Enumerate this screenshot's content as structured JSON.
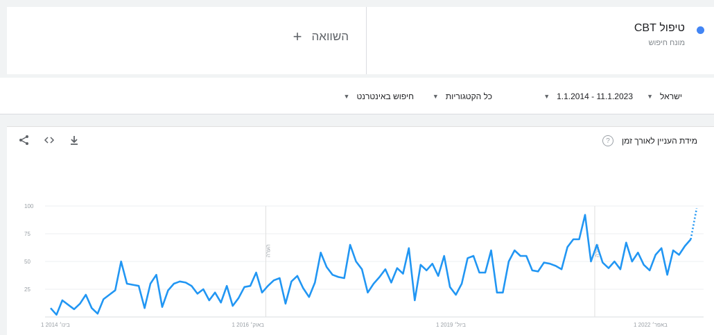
{
  "term": {
    "title": "טיפול CBT",
    "subtitle": "מונח חיפוש",
    "color": "#4285f4"
  },
  "compare": {
    "label": "השוואה",
    "icon": "plus-icon"
  },
  "filters": [
    {
      "label": "ישראל"
    },
    {
      "label": "11.1.2023 - 1.1.2014"
    },
    {
      "label": "כל הקטגוריות"
    },
    {
      "label": "חיפוש באינטרנט"
    }
  ],
  "panel": {
    "title": "מידת העניין לאורך זמן",
    "actions": [
      "download-icon",
      "embed-icon",
      "share-icon"
    ]
  },
  "chart_data": {
    "type": "line",
    "ylim": [
      0,
      100
    ],
    "yticks": [
      "100",
      "75",
      "50",
      "25"
    ],
    "xtick_labels": [
      "1 בינו׳ 2014",
      "1 באוק׳ 2016",
      "1 ביול׳ 2019",
      "1 באפר׳ 2022"
    ],
    "notes": [
      "הערה",
      "הערה"
    ],
    "line_color": "#2196f3",
    "series": [
      {
        "values": [
          8,
          2,
          15,
          11,
          7,
          12,
          20,
          8,
          3,
          16,
          20,
          24,
          50,
          30,
          29,
          28,
          8,
          30,
          38,
          9,
          24,
          30,
          32,
          31,
          28,
          21,
          25,
          15,
          22,
          13,
          28,
          10,
          17,
          27,
          28,
          40,
          22,
          28,
          33,
          35,
          12,
          32,
          37,
          26,
          18,
          31,
          58,
          45,
          38,
          36,
          35,
          65,
          50,
          43,
          22,
          30,
          36,
          43,
          31,
          44,
          39,
          62,
          15,
          47,
          42,
          48,
          37,
          55,
          27,
          20,
          30,
          53,
          55,
          40,
          40,
          60,
          22,
          22,
          50,
          60,
          55,
          55,
          42,
          41,
          49,
          48,
          46,
          43,
          63,
          70,
          70,
          92,
          50,
          65,
          49,
          44,
          50,
          43,
          67,
          50,
          58,
          47,
          42,
          56,
          62,
          38,
          60,
          56,
          64,
          70
        ],
        "forecast": [
          70,
          98
        ]
      }
    ]
  }
}
